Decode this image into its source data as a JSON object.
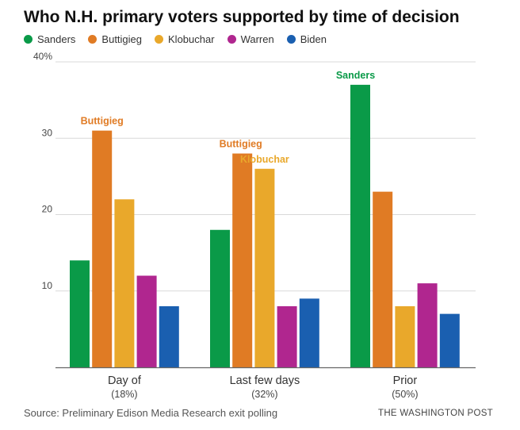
{
  "chart_data": {
    "type": "bar",
    "title": "Who N.H. primary voters supported by time of decision",
    "xlabel": "",
    "ylabel": "",
    "ylim": [
      0,
      40
    ],
    "yticks": [
      {
        "value": 10,
        "label": "10"
      },
      {
        "value": 20,
        "label": "20"
      },
      {
        "value": 30,
        "label": "30"
      },
      {
        "value": 40,
        "label": "40%"
      }
    ],
    "categories": [
      {
        "name": "Day of",
        "sub": "(18%)"
      },
      {
        "name": "Last few days",
        "sub": "(32%)"
      },
      {
        "name": "Prior",
        "sub": "(50%)"
      }
    ],
    "series": [
      {
        "name": "Sanders",
        "color": "#0a9a48",
        "values": [
          14,
          18,
          37
        ]
      },
      {
        "name": "Buttigieg",
        "color": "#e07b24",
        "values": [
          31,
          28,
          23
        ]
      },
      {
        "name": "Klobuchar",
        "color": "#e9a82b",
        "values": [
          22,
          26,
          8
        ]
      },
      {
        "name": "Warren",
        "color": "#b0268f",
        "values": [
          12,
          8,
          11
        ]
      },
      {
        "name": "Biden",
        "color": "#1a5fb0",
        "values": [
          8,
          9,
          7
        ]
      }
    ],
    "annotations": [
      {
        "text": "Buttigieg",
        "category": 0,
        "series": 1
      },
      {
        "text": "Buttigieg",
        "category": 1,
        "series": 1
      },
      {
        "text": "Klobuchar",
        "category": 1,
        "series": 2
      },
      {
        "text": "Sanders",
        "category": 2,
        "series": 0
      }
    ],
    "legend": "top-left",
    "grid": true
  },
  "footer": {
    "source": "Source: Preliminary Edison Media Research exit polling",
    "credit": "THE WASHINGTON POST"
  }
}
